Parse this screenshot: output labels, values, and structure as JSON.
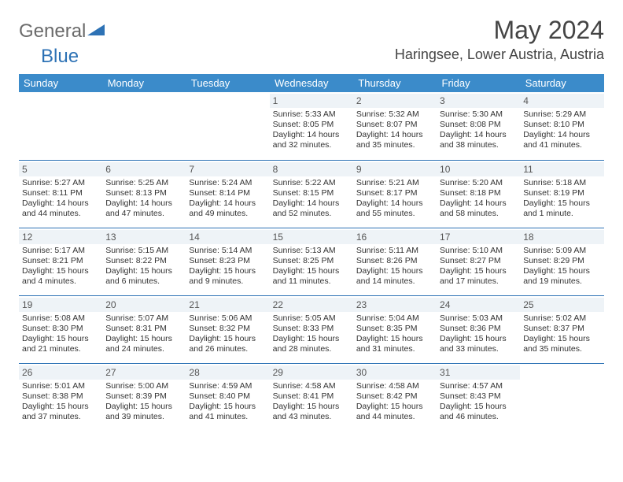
{
  "logo": {
    "general": "General",
    "blue": "Blue"
  },
  "title": "May 2024",
  "location": "Haringsee, Lower Austria, Austria",
  "colors": {
    "header_bg": "#3b8bca",
    "header_text": "#ffffff",
    "border": "#2d72b5",
    "daynum_bg": "#eef3f7",
    "logo_gray": "#6a6a6a",
    "logo_blue": "#2d72b5"
  },
  "weekdays": [
    "Sunday",
    "Monday",
    "Tuesday",
    "Wednesday",
    "Thursday",
    "Friday",
    "Saturday"
  ],
  "weeks": [
    [
      null,
      null,
      null,
      {
        "n": "1",
        "sr": "5:33 AM",
        "ss": "8:05 PM",
        "dl": "14 hours and 32 minutes."
      },
      {
        "n": "2",
        "sr": "5:32 AM",
        "ss": "8:07 PM",
        "dl": "14 hours and 35 minutes."
      },
      {
        "n": "3",
        "sr": "5:30 AM",
        "ss": "8:08 PM",
        "dl": "14 hours and 38 minutes."
      },
      {
        "n": "4",
        "sr": "5:29 AM",
        "ss": "8:10 PM",
        "dl": "14 hours and 41 minutes."
      }
    ],
    [
      {
        "n": "5",
        "sr": "5:27 AM",
        "ss": "8:11 PM",
        "dl": "14 hours and 44 minutes."
      },
      {
        "n": "6",
        "sr": "5:25 AM",
        "ss": "8:13 PM",
        "dl": "14 hours and 47 minutes."
      },
      {
        "n": "7",
        "sr": "5:24 AM",
        "ss": "8:14 PM",
        "dl": "14 hours and 49 minutes."
      },
      {
        "n": "8",
        "sr": "5:22 AM",
        "ss": "8:15 PM",
        "dl": "14 hours and 52 minutes."
      },
      {
        "n": "9",
        "sr": "5:21 AM",
        "ss": "8:17 PM",
        "dl": "14 hours and 55 minutes."
      },
      {
        "n": "10",
        "sr": "5:20 AM",
        "ss": "8:18 PM",
        "dl": "14 hours and 58 minutes."
      },
      {
        "n": "11",
        "sr": "5:18 AM",
        "ss": "8:19 PM",
        "dl": "15 hours and 1 minute."
      }
    ],
    [
      {
        "n": "12",
        "sr": "5:17 AM",
        "ss": "8:21 PM",
        "dl": "15 hours and 4 minutes."
      },
      {
        "n": "13",
        "sr": "5:15 AM",
        "ss": "8:22 PM",
        "dl": "15 hours and 6 minutes."
      },
      {
        "n": "14",
        "sr": "5:14 AM",
        "ss": "8:23 PM",
        "dl": "15 hours and 9 minutes."
      },
      {
        "n": "15",
        "sr": "5:13 AM",
        "ss": "8:25 PM",
        "dl": "15 hours and 11 minutes."
      },
      {
        "n": "16",
        "sr": "5:11 AM",
        "ss": "8:26 PM",
        "dl": "15 hours and 14 minutes."
      },
      {
        "n": "17",
        "sr": "5:10 AM",
        "ss": "8:27 PM",
        "dl": "15 hours and 17 minutes."
      },
      {
        "n": "18",
        "sr": "5:09 AM",
        "ss": "8:29 PM",
        "dl": "15 hours and 19 minutes."
      }
    ],
    [
      {
        "n": "19",
        "sr": "5:08 AM",
        "ss": "8:30 PM",
        "dl": "15 hours and 21 minutes."
      },
      {
        "n": "20",
        "sr": "5:07 AM",
        "ss": "8:31 PM",
        "dl": "15 hours and 24 minutes."
      },
      {
        "n": "21",
        "sr": "5:06 AM",
        "ss": "8:32 PM",
        "dl": "15 hours and 26 minutes."
      },
      {
        "n": "22",
        "sr": "5:05 AM",
        "ss": "8:33 PM",
        "dl": "15 hours and 28 minutes."
      },
      {
        "n": "23",
        "sr": "5:04 AM",
        "ss": "8:35 PM",
        "dl": "15 hours and 31 minutes."
      },
      {
        "n": "24",
        "sr": "5:03 AM",
        "ss": "8:36 PM",
        "dl": "15 hours and 33 minutes."
      },
      {
        "n": "25",
        "sr": "5:02 AM",
        "ss": "8:37 PM",
        "dl": "15 hours and 35 minutes."
      }
    ],
    [
      {
        "n": "26",
        "sr": "5:01 AM",
        "ss": "8:38 PM",
        "dl": "15 hours and 37 minutes."
      },
      {
        "n": "27",
        "sr": "5:00 AM",
        "ss": "8:39 PM",
        "dl": "15 hours and 39 minutes."
      },
      {
        "n": "28",
        "sr": "4:59 AM",
        "ss": "8:40 PM",
        "dl": "15 hours and 41 minutes."
      },
      {
        "n": "29",
        "sr": "4:58 AM",
        "ss": "8:41 PM",
        "dl": "15 hours and 43 minutes."
      },
      {
        "n": "30",
        "sr": "4:58 AM",
        "ss": "8:42 PM",
        "dl": "15 hours and 44 minutes."
      },
      {
        "n": "31",
        "sr": "4:57 AM",
        "ss": "8:43 PM",
        "dl": "15 hours and 46 minutes."
      },
      null
    ]
  ],
  "labels": {
    "sunrise": "Sunrise:",
    "sunset": "Sunset:",
    "daylight": "Daylight:"
  }
}
